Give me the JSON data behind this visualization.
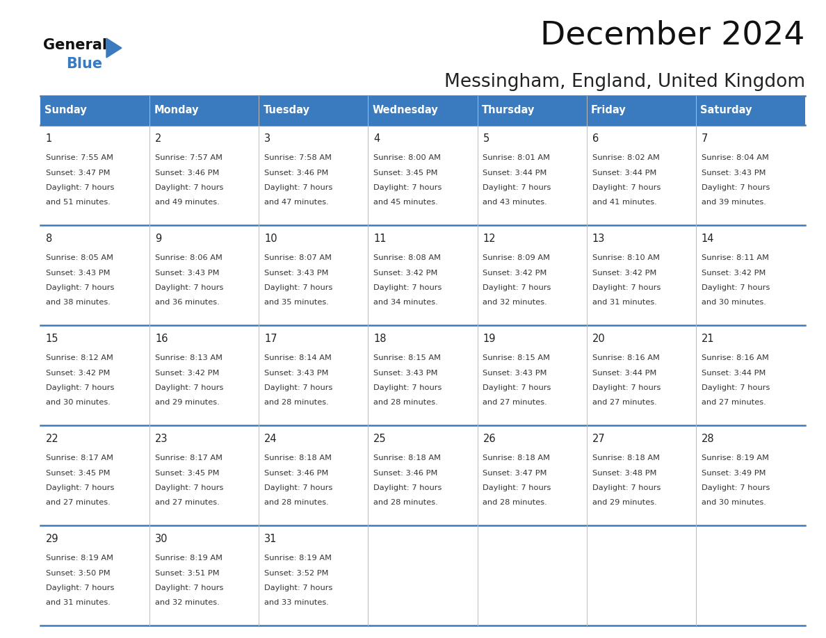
{
  "title": "December 2024",
  "subtitle": "Messingham, England, United Kingdom",
  "header_color": "#3a7abf",
  "header_text_color": "#ffffff",
  "days_of_week": [
    "Sunday",
    "Monday",
    "Tuesday",
    "Wednesday",
    "Thursday",
    "Friday",
    "Saturday"
  ],
  "cell_text_color": "#333333",
  "grid_line_color": "#3a7abf",
  "calendar_data": [
    [
      {
        "day": 1,
        "sunrise": "7:55 AM",
        "sunset": "3:47 PM",
        "daylight_hours": 7,
        "daylight_minutes": 51
      },
      {
        "day": 2,
        "sunrise": "7:57 AM",
        "sunset": "3:46 PM",
        "daylight_hours": 7,
        "daylight_minutes": 49
      },
      {
        "day": 3,
        "sunrise": "7:58 AM",
        "sunset": "3:46 PM",
        "daylight_hours": 7,
        "daylight_minutes": 47
      },
      {
        "day": 4,
        "sunrise": "8:00 AM",
        "sunset": "3:45 PM",
        "daylight_hours": 7,
        "daylight_minutes": 45
      },
      {
        "day": 5,
        "sunrise": "8:01 AM",
        "sunset": "3:44 PM",
        "daylight_hours": 7,
        "daylight_minutes": 43
      },
      {
        "day": 6,
        "sunrise": "8:02 AM",
        "sunset": "3:44 PM",
        "daylight_hours": 7,
        "daylight_minutes": 41
      },
      {
        "day": 7,
        "sunrise": "8:04 AM",
        "sunset": "3:43 PM",
        "daylight_hours": 7,
        "daylight_minutes": 39
      }
    ],
    [
      {
        "day": 8,
        "sunrise": "8:05 AM",
        "sunset": "3:43 PM",
        "daylight_hours": 7,
        "daylight_minutes": 38
      },
      {
        "day": 9,
        "sunrise": "8:06 AM",
        "sunset": "3:43 PM",
        "daylight_hours": 7,
        "daylight_minutes": 36
      },
      {
        "day": 10,
        "sunrise": "8:07 AM",
        "sunset": "3:43 PM",
        "daylight_hours": 7,
        "daylight_minutes": 35
      },
      {
        "day": 11,
        "sunrise": "8:08 AM",
        "sunset": "3:42 PM",
        "daylight_hours": 7,
        "daylight_minutes": 34
      },
      {
        "day": 12,
        "sunrise": "8:09 AM",
        "sunset": "3:42 PM",
        "daylight_hours": 7,
        "daylight_minutes": 32
      },
      {
        "day": 13,
        "sunrise": "8:10 AM",
        "sunset": "3:42 PM",
        "daylight_hours": 7,
        "daylight_minutes": 31
      },
      {
        "day": 14,
        "sunrise": "8:11 AM",
        "sunset": "3:42 PM",
        "daylight_hours": 7,
        "daylight_minutes": 30
      }
    ],
    [
      {
        "day": 15,
        "sunrise": "8:12 AM",
        "sunset": "3:42 PM",
        "daylight_hours": 7,
        "daylight_minutes": 30
      },
      {
        "day": 16,
        "sunrise": "8:13 AM",
        "sunset": "3:42 PM",
        "daylight_hours": 7,
        "daylight_minutes": 29
      },
      {
        "day": 17,
        "sunrise": "8:14 AM",
        "sunset": "3:43 PM",
        "daylight_hours": 7,
        "daylight_minutes": 28
      },
      {
        "day": 18,
        "sunrise": "8:15 AM",
        "sunset": "3:43 PM",
        "daylight_hours": 7,
        "daylight_minutes": 28
      },
      {
        "day": 19,
        "sunrise": "8:15 AM",
        "sunset": "3:43 PM",
        "daylight_hours": 7,
        "daylight_minutes": 27
      },
      {
        "day": 20,
        "sunrise": "8:16 AM",
        "sunset": "3:44 PM",
        "daylight_hours": 7,
        "daylight_minutes": 27
      },
      {
        "day": 21,
        "sunrise": "8:16 AM",
        "sunset": "3:44 PM",
        "daylight_hours": 7,
        "daylight_minutes": 27
      }
    ],
    [
      {
        "day": 22,
        "sunrise": "8:17 AM",
        "sunset": "3:45 PM",
        "daylight_hours": 7,
        "daylight_minutes": 27
      },
      {
        "day": 23,
        "sunrise": "8:17 AM",
        "sunset": "3:45 PM",
        "daylight_hours": 7,
        "daylight_minutes": 27
      },
      {
        "day": 24,
        "sunrise": "8:18 AM",
        "sunset": "3:46 PM",
        "daylight_hours": 7,
        "daylight_minutes": 28
      },
      {
        "day": 25,
        "sunrise": "8:18 AM",
        "sunset": "3:46 PM",
        "daylight_hours": 7,
        "daylight_minutes": 28
      },
      {
        "day": 26,
        "sunrise": "8:18 AM",
        "sunset": "3:47 PM",
        "daylight_hours": 7,
        "daylight_minutes": 28
      },
      {
        "day": 27,
        "sunrise": "8:18 AM",
        "sunset": "3:48 PM",
        "daylight_hours": 7,
        "daylight_minutes": 29
      },
      {
        "day": 28,
        "sunrise": "8:19 AM",
        "sunset": "3:49 PM",
        "daylight_hours": 7,
        "daylight_minutes": 30
      }
    ],
    [
      {
        "day": 29,
        "sunrise": "8:19 AM",
        "sunset": "3:50 PM",
        "daylight_hours": 7,
        "daylight_minutes": 31
      },
      {
        "day": 30,
        "sunrise": "8:19 AM",
        "sunset": "3:51 PM",
        "daylight_hours": 7,
        "daylight_minutes": 32
      },
      {
        "day": 31,
        "sunrise": "8:19 AM",
        "sunset": "3:52 PM",
        "daylight_hours": 7,
        "daylight_minutes": 33
      },
      null,
      null,
      null,
      null
    ]
  ],
  "logo_text_general": "General",
  "logo_text_blue": "Blue",
  "logo_triangle_color": "#3a7abf",
  "fig_width": 11.88,
  "fig_height": 9.18,
  "dpi": 100
}
